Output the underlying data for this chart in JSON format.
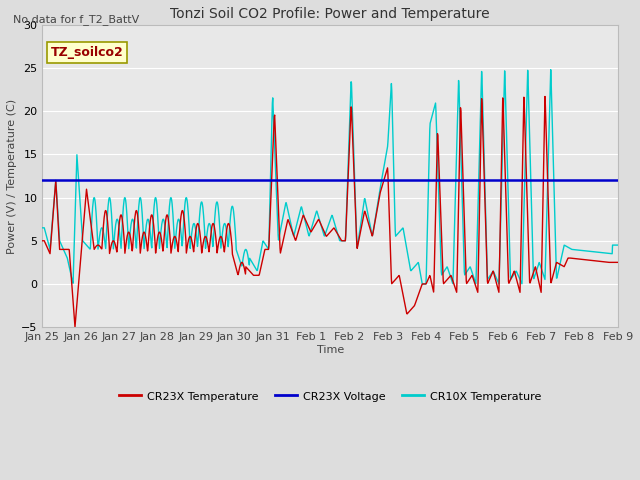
{
  "title": "Tonzi Soil CO2 Profile: Power and Temperature",
  "subtitle": "No data for f_T2_BattV",
  "ylabel": "Power (V) / Temperature (C)",
  "xlabel": "Time",
  "ylim": [
    -5,
    30
  ],
  "xlim": [
    0,
    15
  ],
  "cr23x_voltage_level": 12.0,
  "cr23x_color": "#cc0000",
  "cr10x_color": "#00cccc",
  "voltage_color": "#0000cc",
  "legend_label": "TZ_soilco2",
  "legend_label_color": "#990000",
  "legend_box_facecolor": "#ffffcc",
  "legend_box_edgecolor": "#999900",
  "fig_facecolor": "#dddddd",
  "axes_facecolor": "#e8e8e8",
  "grid_color": "#ffffff",
  "xtick_labels": [
    "Jan 25",
    "Jan 26",
    "Jan 27",
    "Jan 28",
    "Jan 29",
    "Jan 30",
    "Jan 31",
    "Feb 1",
    "Feb 2",
    "Feb 3",
    "Feb 4",
    "Feb 5",
    "Feb 6",
    "Feb 7",
    "Feb 8",
    "Feb 9"
  ],
  "ytick_values": [
    -5,
    0,
    5,
    10,
    15,
    20,
    25,
    30
  ],
  "title_fontsize": 10,
  "subtitle_fontsize": 8,
  "axis_label_fontsize": 8,
  "tick_fontsize": 8,
  "legend_fontsize": 8
}
